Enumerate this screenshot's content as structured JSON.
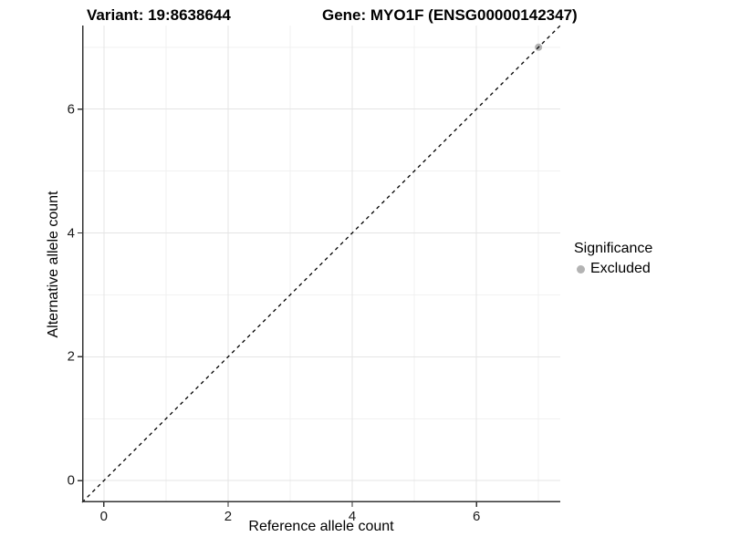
{
  "figure": {
    "title_left": "Variant: 19:8638644",
    "title_right": "Gene: MYO1F (ENSG00000142347)"
  },
  "chart_data": {
    "type": "scatter",
    "title": "Variant: 19:8638644   Gene: MYO1F (ENSG00000142347)",
    "xlabel": "Reference allele count",
    "ylabel": "Alternative allele count",
    "xlim": [
      -0.35,
      7.35
    ],
    "ylim": [
      -0.35,
      7.35
    ],
    "x_ticks": [
      0,
      2,
      4,
      6
    ],
    "y_ticks": [
      0,
      2,
      4,
      6
    ],
    "minor_grid_x": [
      1,
      3,
      5,
      7
    ],
    "minor_grid_y": [
      1,
      3,
      5,
      7
    ],
    "grid": true,
    "points": [
      {
        "x": 7,
        "y": 7,
        "series": "Excluded"
      }
    ],
    "reference_line": {
      "type": "identity",
      "slope": 1,
      "intercept": 0,
      "style": "dashed",
      "color": "#000000"
    },
    "legend": {
      "title": "Significance",
      "position": "right",
      "entries": [
        {
          "label": "Excluded",
          "color": "#b3b3b3",
          "marker": "circle"
        }
      ]
    },
    "colors": {
      "major_grid": "#e4e4e4",
      "minor_grid": "#f1f1f1",
      "axis_line": "#333333",
      "tick_mark": "#333333",
      "point": "#b3b3b3",
      "text": "#000000"
    }
  }
}
